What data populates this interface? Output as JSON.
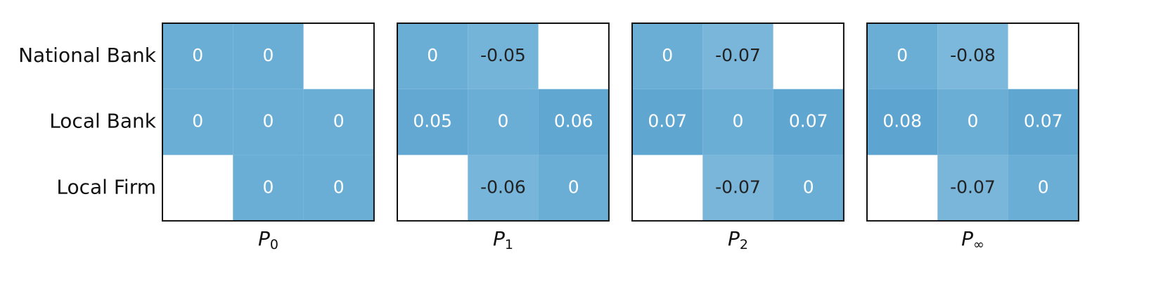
{
  "chart_data": [
    {
      "type": "heatmap",
      "categories": [
        "National Bank",
        "Local Bank",
        "Local Firm"
      ],
      "xlabel": [
        "P",
        "0"
      ],
      "values": [
        [
          0,
          0,
          null
        ],
        [
          0,
          0,
          0
        ],
        [
          null,
          0,
          0
        ]
      ],
      "cmap": [
        "#80badc",
        "#6aaed6",
        "#5aa2cf"
      ],
      "clim": [
        -0.1,
        0.1
      ]
    },
    {
      "type": "heatmap",
      "xlabel": [
        "P",
        "1"
      ],
      "values": [
        [
          0,
          -0.05,
          null
        ],
        [
          0.05,
          0,
          0.06
        ],
        [
          null,
          -0.06,
          0
        ]
      ],
      "cmap": [
        "#80badc",
        "#6aaed6",
        "#5aa2cf"
      ],
      "clim": [
        -0.1,
        0.1
      ]
    },
    {
      "type": "heatmap",
      "xlabel": [
        "P",
        "2"
      ],
      "values": [
        [
          0,
          -0.07,
          null
        ],
        [
          0.07,
          0,
          0.07
        ],
        [
          null,
          -0.07,
          0
        ]
      ],
      "cmap": [
        "#80badc",
        "#6aaed6",
        "#5aa2cf"
      ],
      "clim": [
        -0.1,
        0.1
      ]
    },
    {
      "type": "heatmap",
      "xlabel": [
        "P",
        "∞"
      ],
      "values": [
        [
          0,
          -0.08,
          null
        ],
        [
          0.08,
          0,
          0.07
        ],
        [
          null,
          -0.07,
          0
        ]
      ],
      "cmap": [
        "#80badc",
        "#6aaed6",
        "#5aa2cf"
      ],
      "clim": [
        -0.1,
        0.1
      ]
    }
  ]
}
